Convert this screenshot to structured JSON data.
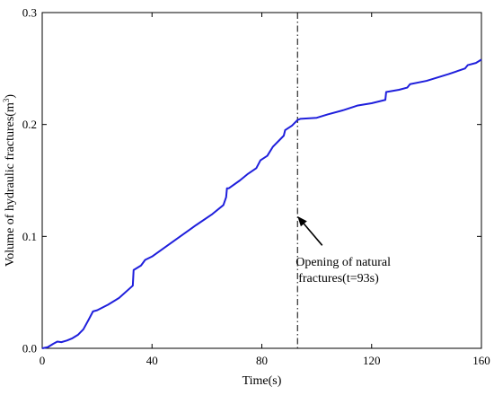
{
  "chart_data": {
    "type": "line",
    "title": "",
    "xlabel": "Time(s)",
    "ylabel_main": "Volume of hydraulic fractures(m",
    "ylabel_sup": "3",
    "ylabel_close": ")",
    "xlim": [
      0,
      160
    ],
    "ylim": [
      0,
      0.3
    ],
    "xticks": [
      0,
      40,
      80,
      120,
      160
    ],
    "xtick_labels": [
      "0",
      "40",
      "80",
      "120",
      "160"
    ],
    "yticks": [
      0,
      0.1,
      0.2,
      0.3
    ],
    "ytick_labels": [
      "0.0",
      "0.1",
      "0.2",
      "0.3"
    ],
    "grid": false,
    "line_color": "#1f1fdc",
    "series": [
      {
        "values": [
          [
            0,
            0
          ],
          [
            2,
            0.001
          ],
          [
            4,
            0.004
          ],
          [
            5.5,
            0.006
          ],
          [
            7,
            0.0055
          ],
          [
            9,
            0.007
          ],
          [
            11,
            0.009
          ],
          [
            13,
            0.012
          ],
          [
            15,
            0.017
          ],
          [
            17,
            0.026
          ],
          [
            18.5,
            0.033
          ],
          [
            20,
            0.034
          ],
          [
            24,
            0.039
          ],
          [
            28,
            0.045
          ],
          [
            33,
            0.056
          ],
          [
            33.3,
            0.07
          ],
          [
            34,
            0.071
          ],
          [
            36,
            0.074
          ],
          [
            37.5,
            0.079
          ],
          [
            40,
            0.082
          ],
          [
            48,
            0.096
          ],
          [
            56,
            0.11
          ],
          [
            62,
            0.12
          ],
          [
            66,
            0.128
          ],
          [
            67,
            0.135
          ],
          [
            67.3,
            0.143
          ],
          [
            68,
            0.143
          ],
          [
            72,
            0.15
          ],
          [
            75,
            0.156
          ],
          [
            78,
            0.161
          ],
          [
            79.5,
            0.168
          ],
          [
            82,
            0.172
          ],
          [
            84,
            0.18
          ],
          [
            86,
            0.185
          ],
          [
            88,
            0.19
          ],
          [
            88.5,
            0.195
          ],
          [
            91,
            0.199
          ],
          [
            93,
            0.204
          ],
          [
            94,
            0.205
          ],
          [
            100,
            0.206
          ],
          [
            104,
            0.209
          ],
          [
            110,
            0.213
          ],
          [
            115,
            0.217
          ],
          [
            120,
            0.219
          ],
          [
            125,
            0.222
          ],
          [
            125.3,
            0.229
          ],
          [
            130,
            0.231
          ],
          [
            133,
            0.233
          ],
          [
            134,
            0.236
          ],
          [
            140,
            0.239
          ],
          [
            148,
            0.245
          ],
          [
            154,
            0.25
          ],
          [
            155,
            0.253
          ],
          [
            158,
            0.255
          ],
          [
            160,
            0.258
          ]
        ]
      }
    ],
    "marker_line": {
      "x": 93,
      "style": "dash-dot"
    },
    "annotation": {
      "line1": "Opening of natural",
      "line2": "fractures(t=93s)",
      "arrow_tip": [
        93,
        0.118
      ],
      "arrow_tail": [
        102,
        0.092
      ],
      "text_anchor": [
        93,
        0.078
      ]
    }
  }
}
